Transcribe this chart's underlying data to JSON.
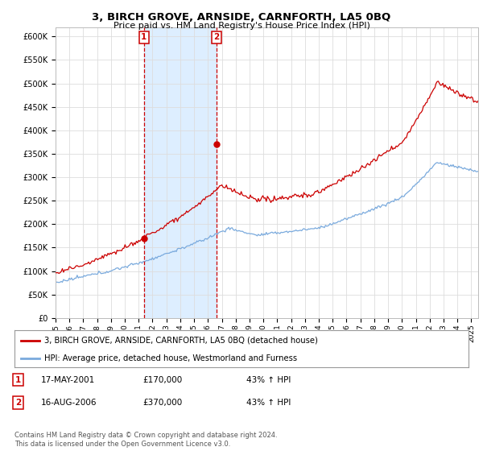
{
  "title": "3, BIRCH GROVE, ARNSIDE, CARNFORTH, LA5 0BQ",
  "subtitle": "Price paid vs. HM Land Registry's House Price Index (HPI)",
  "ylim": [
    0,
    620000
  ],
  "yticks": [
    0,
    50000,
    100000,
    150000,
    200000,
    250000,
    300000,
    350000,
    400000,
    450000,
    500000,
    550000,
    600000
  ],
  "ytick_labels": [
    "£0",
    "£50K",
    "£100K",
    "£150K",
    "£200K",
    "£250K",
    "£300K",
    "£350K",
    "£400K",
    "£450K",
    "£500K",
    "£550K",
    "£600K"
  ],
  "sale1_year": 2001.38,
  "sale1_price": 170000,
  "sale2_year": 2006.62,
  "sale2_price": 370000,
  "hpi_line_color": "#7aaadd",
  "price_line_color": "#cc0000",
  "shade_color": "#ddeeff",
  "grid_color": "#dddddd",
  "background_color": "#ffffff",
  "legend_label_price": "3, BIRCH GROVE, ARNSIDE, CARNFORTH, LA5 0BQ (detached house)",
  "legend_label_hpi": "HPI: Average price, detached house, Westmorland and Furness",
  "footnote": "Contains HM Land Registry data © Crown copyright and database right 2024.\nThis data is licensed under the Open Government Licence v3.0.",
  "table_rows": [
    {
      "num": "1",
      "date": "17-MAY-2001",
      "price": "£170,000",
      "hpi": "43% ↑ HPI"
    },
    {
      "num": "2",
      "date": "16-AUG-2006",
      "price": "£370,000",
      "hpi": "43% ↑ HPI"
    }
  ],
  "xmin": 1995.0,
  "xmax": 2025.5,
  "xtick_years": [
    1995,
    1996,
    1997,
    1998,
    1999,
    2000,
    2001,
    2002,
    2003,
    2004,
    2005,
    2006,
    2007,
    2008,
    2009,
    2010,
    2011,
    2012,
    2013,
    2014,
    2015,
    2016,
    2017,
    2018,
    2019,
    2020,
    2021,
    2022,
    2023,
    2024,
    2025
  ]
}
